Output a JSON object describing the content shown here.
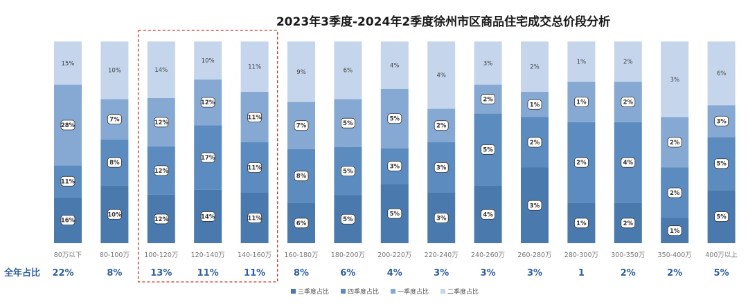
{
  "chart_data": {
    "type": "bar",
    "stacked": true,
    "normalized": true,
    "title": "2023年3季度-2024年2季度徐州市区商品住宅成交总价段分析",
    "categories": [
      "80万以下",
      "80-100万",
      "100-120万",
      "120-140万",
      "140-160万",
      "160-180万",
      "180-200万",
      "200-220万",
      "220-240万",
      "240-260万",
      "260-280万",
      "280-300万",
      "300-350万",
      "350-400万",
      "400万以上"
    ],
    "series": [
      {
        "name": "三季度占比",
        "color": "#4a79ad",
        "labels": [
          "16%",
          "10%",
          "12%",
          "14%",
          "11%",
          "6%",
          "5%",
          "5%",
          "3%",
          "4%",
          "3%",
          "1%",
          "2%",
          "1%",
          "5%"
        ],
        "values": [
          16,
          10,
          12,
          14,
          11,
          6,
          5,
          5,
          3,
          4,
          3,
          1,
          2,
          1,
          5
        ]
      },
      {
        "name": "四季度占比",
        "color": "#5b8bbf",
        "labels": [
          "11%",
          "8%",
          "12%",
          "17%",
          "11%",
          "8%",
          "5%",
          "3%",
          "3%",
          "5%",
          "2%",
          "2%",
          "4%",
          "2%",
          "5%"
        ],
        "values": [
          11,
          8,
          12,
          17,
          11,
          8,
          5,
          3,
          3,
          5,
          2,
          2,
          4,
          2,
          5
        ]
      },
      {
        "name": "一季度占比",
        "color": "#86a9d3",
        "labels": [
          "28%",
          "7%",
          "12%",
          "12%",
          "11%",
          "7%",
          "5%",
          "5%",
          "2%",
          "2%",
          "1%",
          "1%",
          "2%",
          "2%",
          "3%"
        ],
        "values": [
          28,
          7,
          12,
          12,
          11,
          7,
          5,
          5,
          2,
          2,
          1,
          1,
          2,
          2,
          3
        ]
      },
      {
        "name": "二季度占比",
        "color": "#c4d5ec",
        "labels": [
          "15%",
          "10%",
          "14%",
          "10%",
          "11%",
          "9%",
          "6%",
          "4%",
          "4%",
          "3%",
          "2%",
          "1%",
          "2%",
          "3%",
          "6%"
        ],
        "values": [
          15,
          10,
          14,
          10,
          11,
          9,
          6,
          4,
          4,
          3,
          2,
          1,
          2,
          3,
          6
        ]
      }
    ],
    "annual_label": "全年占比",
    "annual_values": [
      "22%",
      "8%",
      "13%",
      "11%",
      "11%",
      "8%",
      "6%",
      "4%",
      "3%",
      "3%",
      "3%",
      "1",
      "2%",
      "2%",
      "5%"
    ],
    "highlight_range": [
      2,
      4
    ],
    "legend_position": "bottom"
  }
}
